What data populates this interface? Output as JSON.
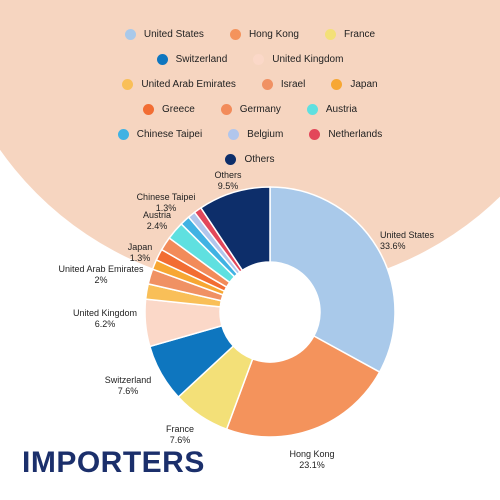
{
  "chart_data": {
    "type": "pie",
    "style": "donut",
    "title": "IMPORTERS",
    "legend_position": "top",
    "slices": [
      {
        "name": "United States",
        "value": 33.6,
        "label": "33.6%",
        "color": "#a9c9ea"
      },
      {
        "name": "Hong Kong",
        "value": 23.1,
        "label": "23.1%",
        "color": "#f4935c"
      },
      {
        "name": "France",
        "value": 7.6,
        "label": "7.6%",
        "color": "#f3e078"
      },
      {
        "name": "Switzerland",
        "value": 7.6,
        "label": "7.6%",
        "color": "#0e76bf"
      },
      {
        "name": "United Kingdom",
        "value": 6.2,
        "label": "6.2%",
        "color": "#fbd8c8"
      },
      {
        "name": "United Arab Emirates",
        "value": 2.0,
        "label": "2%",
        "color": "#f9bf58"
      },
      {
        "name": "Israel",
        "value": 2.0,
        "label": "",
        "color": "#f09163"
      },
      {
        "name": "Japan",
        "value": 1.3,
        "label": "1.3%",
        "color": "#f7a733"
      },
      {
        "name": "Greece",
        "value": 1.5,
        "label": "",
        "color": "#f26d33"
      },
      {
        "name": "Germany",
        "value": 1.8,
        "label": "",
        "color": "#f28b5a"
      },
      {
        "name": "Austria",
        "value": 2.4,
        "label": "2.4%",
        "color": "#5fe0e0"
      },
      {
        "name": "Chinese Taipei",
        "value": 1.3,
        "label": "1.3%",
        "color": "#40b2e3"
      },
      {
        "name": "Belgium",
        "value": 1.0,
        "label": "",
        "color": "#b1c6ec"
      },
      {
        "name": "Netherlands",
        "value": 1.0,
        "label": "",
        "color": "#e3475a"
      },
      {
        "name": "Others",
        "value": 9.5,
        "label": "9.5%",
        "color": "#0d2e6a"
      }
    ]
  },
  "legend_rows": [
    [
      "United States",
      "Hong Kong",
      "France"
    ],
    [
      "Switzerland",
      "United Kingdom"
    ],
    [
      "United Arab Emirates",
      "Israel",
      "Japan"
    ],
    [
      "Greece",
      "Germany",
      "Austria"
    ],
    [
      "Chinese Taipei",
      "Belgium",
      "Netherlands"
    ],
    [
      "Others"
    ]
  ],
  "colors": {
    "background_circle": "#f6d5c0",
    "title": "#1b2f6b",
    "donut_hole": "#ffffff"
  }
}
